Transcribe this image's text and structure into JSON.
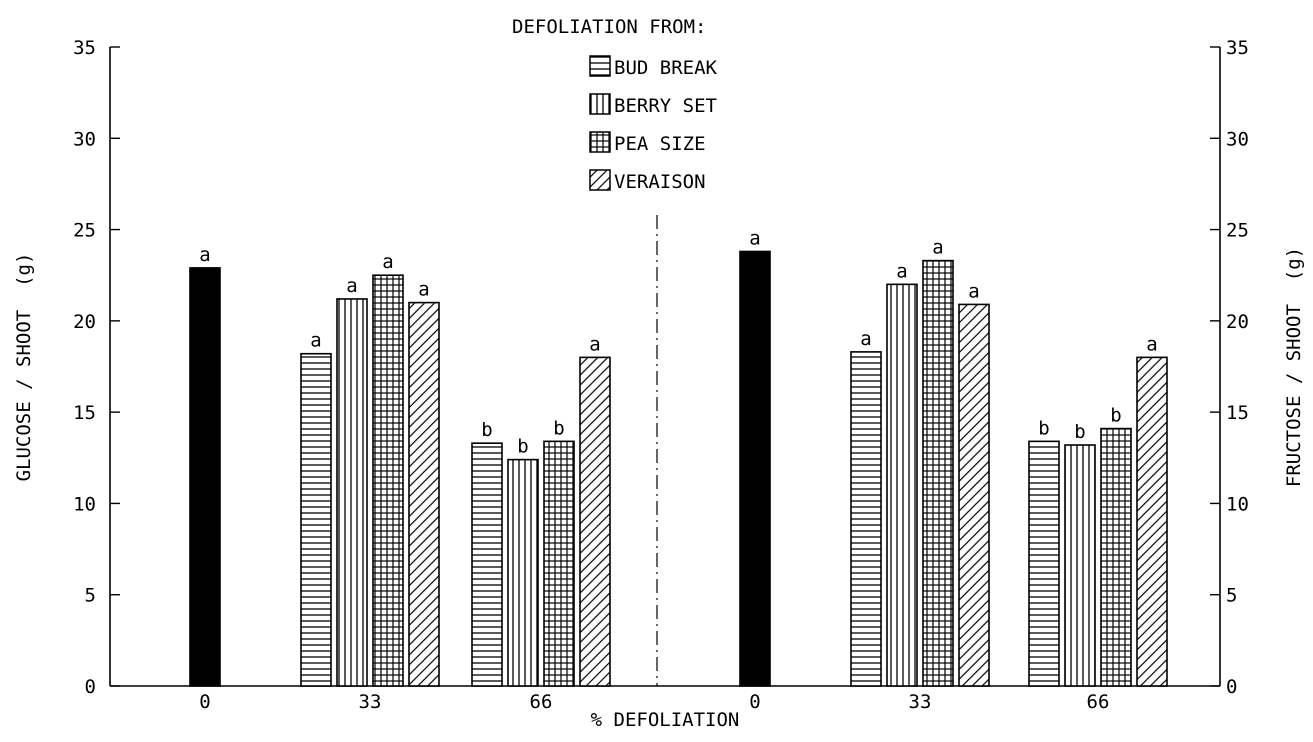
{
  "chart_data": {
    "type": "bar",
    "legend_title": "DEFOLIATION FROM:",
    "legend_position": "top-center",
    "xlabel": "% DEFOLIATION",
    "ylabel_left": "GLUCOSE / SHOOT  (g)",
    "ylabel_right": "FRUCTOSE / SHOOT  (g)",
    "ylim": [
      0,
      35
    ],
    "yticks": [
      "0",
      "5",
      "10",
      "15",
      "20",
      "25",
      "30",
      "35"
    ],
    "grid": false,
    "control": {
      "name": "",
      "pattern": "solid",
      "color": "#000000"
    },
    "series": [
      {
        "name": "BUD BREAK",
        "pattern": "horizontal"
      },
      {
        "name": "BERRY SET",
        "pattern": "vertical"
      },
      {
        "name": "PEA SIZE",
        "pattern": "grid"
      },
      {
        "name": "VERAISON",
        "pattern": "diagonal"
      }
    ],
    "panels": [
      {
        "measure": "glucose",
        "groups": [
          {
            "label": "0",
            "bars": [
              {
                "series": "control",
                "value": 22.9,
                "sig": "a"
              }
            ]
          },
          {
            "label": "33",
            "bars": [
              {
                "series": "BUD BREAK",
                "value": 18.2,
                "sig": "a"
              },
              {
                "series": "BERRY SET",
                "value": 21.2,
                "sig": "a"
              },
              {
                "series": "PEA SIZE",
                "value": 22.5,
                "sig": "a"
              },
              {
                "series": "VERAISON",
                "value": 21.0,
                "sig": "a"
              }
            ]
          },
          {
            "label": "66",
            "bars": [
              {
                "series": "BUD BREAK",
                "value": 13.3,
                "sig": "b"
              },
              {
                "series": "BERRY SET",
                "value": 12.4,
                "sig": "b"
              },
              {
                "series": "PEA SIZE",
                "value": 13.4,
                "sig": "b"
              },
              {
                "series": "VERAISON",
                "value": 18.0,
                "sig": "a"
              }
            ]
          }
        ]
      },
      {
        "measure": "fructose",
        "groups": [
          {
            "label": "0",
            "bars": [
              {
                "series": "control",
                "value": 23.8,
                "sig": "a"
              }
            ]
          },
          {
            "label": "33",
            "bars": [
              {
                "series": "BUD BREAK",
                "value": 18.3,
                "sig": "a"
              },
              {
                "series": "BERRY SET",
                "value": 22.0,
                "sig": "a"
              },
              {
                "series": "PEA SIZE",
                "value": 23.3,
                "sig": "a"
              },
              {
                "series": "VERAISON",
                "value": 20.9,
                "sig": "a"
              }
            ]
          },
          {
            "label": "66",
            "bars": [
              {
                "series": "BUD BREAK",
                "value": 13.4,
                "sig": "b"
              },
              {
                "series": "BERRY SET",
                "value": 13.2,
                "sig": "b"
              },
              {
                "series": "PEA SIZE",
                "value": 14.1,
                "sig": "b"
              },
              {
                "series": "VERAISON",
                "value": 18.0,
                "sig": "a"
              }
            ]
          }
        ]
      }
    ]
  }
}
